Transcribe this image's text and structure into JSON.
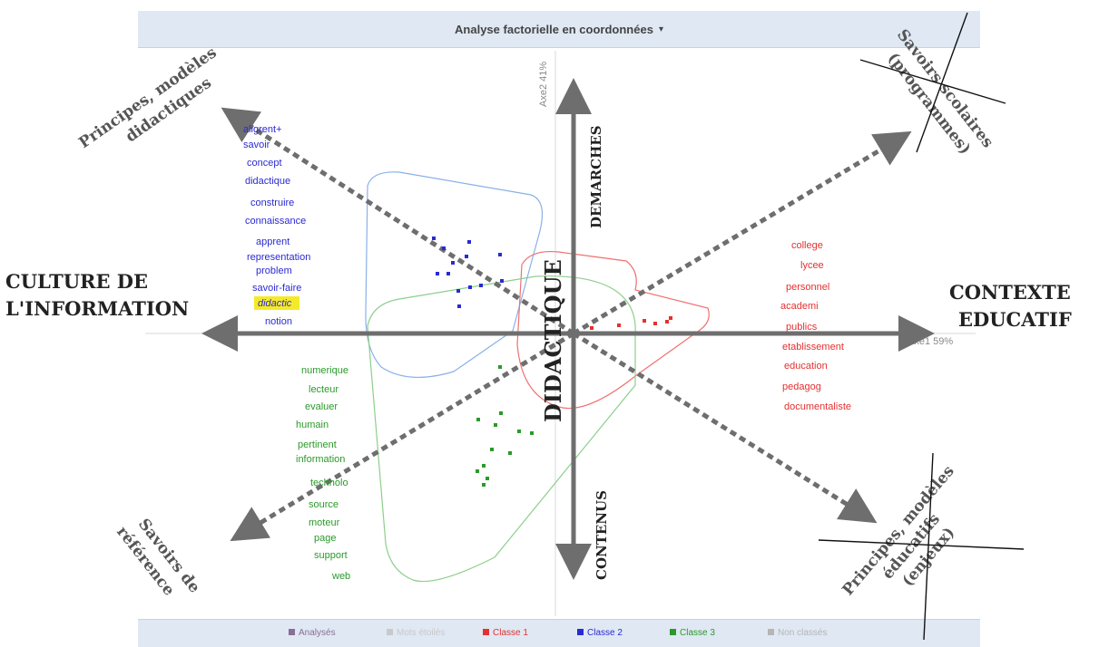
{
  "header": {
    "title": "Analyse factorielle en coordonnées",
    "caret": "▾"
  },
  "colors": {
    "classe1": "#e53030",
    "classe2": "#2a2ad4",
    "classe3": "#2a9a2a",
    "arrow": "#6e6e6e"
  },
  "annotations": {
    "left_axis": [
      "CULTURE DE",
      "L'INFORMATION"
    ],
    "right_axis": [
      "CONTEXTE",
      "EDUCATIF"
    ],
    "top_axis": "DEMARCHES",
    "bottom_axis": "CONTENUS",
    "center_axis": "DIDACTIQUE",
    "top_left": [
      "Principes, modèles",
      "didactiques"
    ],
    "top_right": [
      "Savoirs scolaires",
      "(programmes)"
    ],
    "bottom_left": [
      "Savoirs de",
      "référence"
    ],
    "bottom_right": [
      "Principes, modèles",
      "éducatifs",
      "(enjeux)"
    ]
  },
  "chart_data": {
    "type": "scatter",
    "title": "Analyse factorielle en coordonnées",
    "xlabel": "Axe1 59%",
    "ylabel": "Axe2 41%",
    "grid": false,
    "legend_position": "bottom",
    "legend": [
      {
        "label": "Analysés",
        "color": "#8a6f94"
      },
      {
        "label": "Mots étoilés",
        "color": "#c9c9c9"
      },
      {
        "label": "Classe 1",
        "color": "#e53030"
      },
      {
        "label": "Classe 2",
        "color": "#2a2ad4"
      },
      {
        "label": "Classe 3",
        "color": "#2a9a2a"
      },
      {
        "label": "Non classés",
        "color": "#b5b5b5"
      }
    ],
    "word_series": [
      {
        "name": "Classe 1",
        "color": "#e53030",
        "words": [
          "college",
          "lycee",
          "personnel",
          "academi",
          "publics",
          "etablissement",
          "education",
          "pedagog",
          "documentaliste"
        ]
      },
      {
        "name": "Classe 2",
        "color": "#2a2ad4",
        "words": [
          "aligrent+",
          "savoir",
          "concept",
          "didactique",
          "construire",
          "connaissance",
          "apprent",
          "representation",
          "problem",
          "savoir-faire",
          "didactic",
          "notion"
        ]
      },
      {
        "name": "Classe 3",
        "color": "#2a9a2a",
        "words": [
          "numerique",
          "lecteur",
          "evaluer",
          "humain",
          "pertinent",
          "information",
          "technolo",
          "source",
          "moteur",
          "page",
          "support",
          "web"
        ]
      }
    ]
  }
}
